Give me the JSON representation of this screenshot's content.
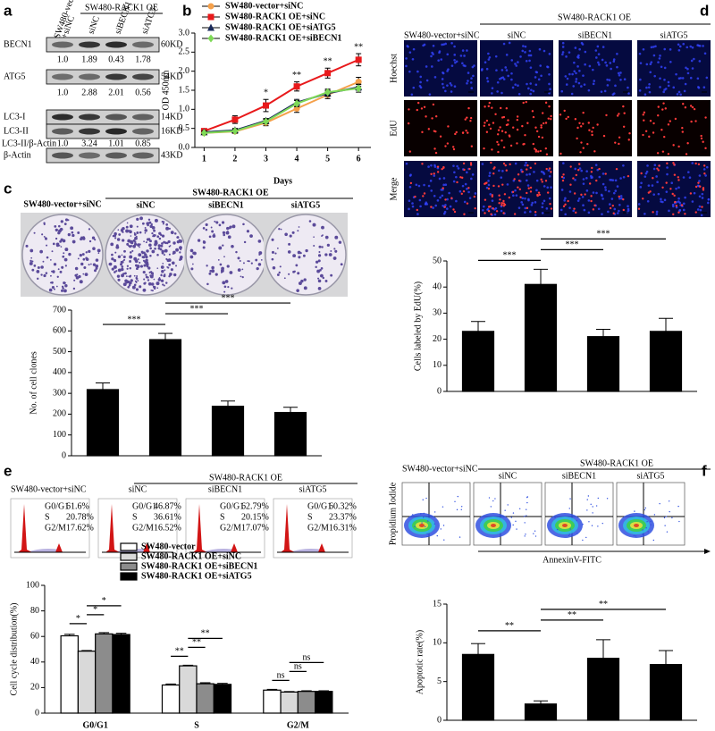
{
  "panel_labels": [
    "a",
    "b",
    "c",
    "d",
    "e",
    "f"
  ],
  "blot": {
    "group": "SW480-RACK1 OE",
    "control": [
      "SW480-vector",
      "+siNC"
    ],
    "columns": [
      "siNC",
      "siBECN1",
      "siATG5"
    ],
    "rows": [
      {
        "label": "BECN1",
        "size": "60KD"
      },
      {
        "label": "ATG5",
        "size": "54KD"
      },
      {
        "label": "LC3-I",
        "size": "14KD"
      },
      {
        "label": "LC3-II",
        "size": "16KD"
      },
      {
        "label": "β-Actin",
        "size": "43KD"
      }
    ],
    "ratios": [
      {
        "values": [
          "1.0",
          "1.89",
          "0.43",
          "1.78"
        ]
      },
      {
        "values": [
          "1.0",
          "2.88",
          "2.01",
          "0.56"
        ]
      },
      {
        "label": "LC3-II/β-Actin",
        "values": [
          "1.0",
          "3.24",
          "1.01",
          "0.85"
        ]
      }
    ]
  },
  "colony": {
    "control": "SW480-vector+siNC",
    "group": "SW480-RACK1 OE",
    "columns": [
      "siNC",
      "siBECN1",
      "siATG5"
    ]
  },
  "edu": {
    "control": "SW480-vector+siNC",
    "group": "SW480-RACK1 OE",
    "columns": [
      "siNC",
      "siBECN1",
      "siATG5"
    ],
    "rows": [
      "Hoechst",
      "EdU",
      "Merge"
    ]
  },
  "cell_cycle": {
    "control": "SW480-vector+siNC",
    "group": "SW480-RACK1 OE",
    "columns": [
      "siNC",
      "siBECN1",
      "siATG5"
    ],
    "panels": [
      [
        [
          "G0/G1",
          "61.6%"
        ],
        [
          "S",
          "20.78%"
        ],
        [
          "G2/M",
          "17.62%"
        ]
      ],
      [
        [
          "G0/G1",
          "46.87%"
        ],
        [
          "S",
          "36.61%"
        ],
        [
          "G2/M",
          "16.52%"
        ]
      ],
      [
        [
          "G0/G1",
          "62.79%"
        ],
        [
          "S",
          "20.15%"
        ],
        [
          "G2/M",
          "17.07%"
        ]
      ],
      [
        [
          "G0/G1",
          "60.32%"
        ],
        [
          "S",
          "23.37%"
        ],
        [
          "G2/M",
          "16.31%"
        ]
      ]
    ]
  },
  "apoptosis": {
    "control": "SW480-vector+siNC",
    "group": "SW480-RACK1 OE",
    "columns": [
      "siNC",
      "siBECN1",
      "siATG5"
    ],
    "y_label": "Propidium Iodide",
    "x_label": "AnnexinV-FITC"
  },
  "chart_data": [
    {
      "type": "line",
      "x_label": "Days",
      "y_label": "OD 450nm",
      "x": [
        1,
        2,
        3,
        4,
        5,
        6
      ],
      "xlim": [
        0.7,
        6.4
      ],
      "xticks": [
        1,
        2,
        3,
        4,
        5,
        6
      ],
      "ylim": [
        0,
        3
      ],
      "yticks": [
        {
          "value": 0,
          "label": "0.0"
        },
        0.5,
        {
          "value": 1,
          "label": "1.0"
        },
        1.5,
        {
          "value": 2,
          "label": "2.0"
        },
        2.5,
        {
          "value": 3,
          "label": "3.0"
        }
      ],
      "legend": "upper left",
      "series": [
        {
          "name": "SW480-vector+siNC",
          "color": "#f5a04a",
          "marker": "circle",
          "values": [
            0.38,
            0.42,
            0.65,
            1.02,
            1.38,
            1.72
          ],
          "errors": [
            0.04,
            0.05,
            0.08,
            0.1,
            0.1,
            0.12
          ]
        },
        {
          "name": "SW480-RACK1 OE+siNC",
          "color": "#e8191b",
          "marker": "square",
          "values": [
            0.43,
            0.73,
            1.1,
            1.6,
            1.95,
            2.3
          ],
          "errors": [
            0.04,
            0.1,
            0.16,
            0.12,
            0.13,
            0.16
          ]
        },
        {
          "name": "SW480-RACK1 OE+siATG5",
          "color": "#1a2a5a",
          "marker": "triangle",
          "values": [
            0.4,
            0.45,
            0.7,
            1.18,
            1.42,
            1.58
          ],
          "errors": [
            0.04,
            0.05,
            0.06,
            0.08,
            0.08,
            0.08
          ]
        },
        {
          "name": "SW480-RACK1 OE+siBECN1",
          "color": "#7ed957",
          "marker": "diamond",
          "values": [
            0.38,
            0.43,
            0.68,
            1.15,
            1.45,
            1.55
          ],
          "errors": [
            0.04,
            0.05,
            0.06,
            0.08,
            0.08,
            0.1
          ]
        }
      ],
      "significance": [
        null,
        null,
        "*",
        "**",
        "**",
        "**"
      ]
    },
    {
      "type": "bar",
      "y_label": "No. of cell clones",
      "categories": [
        null,
        null,
        null,
        null
      ],
      "values": [
        318,
        558,
        238,
        208
      ],
      "errors": [
        32,
        30,
        25,
        25
      ],
      "color": "#000000",
      "ylim": [
        0,
        700
      ],
      "yticks": [
        0,
        100,
        200,
        300,
        400,
        500,
        600,
        700
      ],
      "comparisons": [
        {
          "pair": [
            0,
            1
          ],
          "label": "***"
        },
        {
          "pair": [
            1,
            2
          ],
          "label": "***"
        },
        {
          "pair": [
            1,
            3
          ],
          "label": "***"
        }
      ]
    },
    {
      "type": "bar",
      "y_label": "Cells labeled by EdU(%)",
      "categories": [
        null,
        null,
        null,
        null
      ],
      "values": [
        23,
        41,
        21,
        23
      ],
      "errors": [
        3.8,
        5.8,
        2.8,
        5
      ],
      "color": "#000000",
      "ylim": [
        0,
        50
      ],
      "yticks": [
        0,
        10,
        20,
        30,
        40,
        50
      ],
      "comparisons": [
        {
          "pair": [
            0,
            1
          ],
          "label": "***"
        },
        {
          "pair": [
            1,
            2
          ],
          "label": "***"
        },
        {
          "pair": [
            1,
            3
          ],
          "label": "***"
        }
      ]
    },
    {
      "type": "bar",
      "y_label": "Cell cycle distribution(%)",
      "categories": [
        "G0/G1",
        "S",
        "G2/M"
      ],
      "legend": "upper left",
      "series": [
        {
          "name": "SW480-vector",
          "color": "#ffffff",
          "values": [
            60.5,
            22,
            18
          ],
          "errors": [
            1.2,
            0.8,
            0.6
          ]
        },
        {
          "name": "SW480-RACK1 OE+siNC",
          "color": "#d9d9d9",
          "values": [
            48.5,
            37,
            16.5
          ],
          "errors": [
            0.5,
            0.5,
            0.4
          ]
        },
        {
          "name": "SW480-RACK1 OE+siBECN1",
          "color": "#8c8c8c",
          "values": [
            62,
            23,
            17
          ],
          "errors": [
            1,
            0.8,
            0.5
          ]
        },
        {
          "name": "SW480-RACK1 OE+siATG5",
          "color": "#000000",
          "values": [
            61.5,
            22.5,
            17
          ],
          "errors": [
            1,
            0.8,
            0.5
          ]
        }
      ],
      "ylim": [
        0,
        100
      ],
      "yticks": [
        0,
        20,
        40,
        60,
        80,
        100
      ],
      "comparisons": [
        {
          "category": 0,
          "pair": [
            0,
            1
          ],
          "label": "*"
        },
        {
          "category": 0,
          "pair": [
            1,
            2
          ],
          "label": "*"
        },
        {
          "category": 0,
          "pair": [
            1,
            3
          ],
          "label": "*"
        },
        {
          "category": 1,
          "pair": [
            0,
            1
          ],
          "label": "**"
        },
        {
          "category": 1,
          "pair": [
            1,
            2
          ],
          "label": "**"
        },
        {
          "category": 1,
          "pair": [
            1,
            3
          ],
          "label": "**"
        },
        {
          "category": 2,
          "pair": [
            0,
            1
          ],
          "label": "ns"
        },
        {
          "category": 2,
          "pair": [
            1,
            2
          ],
          "label": "ns"
        },
        {
          "category": 2,
          "pair": [
            1,
            3
          ],
          "label": "ns"
        }
      ]
    },
    {
      "type": "bar",
      "y_label": "Apoptotic rate(%)",
      "categories": [
        null,
        null,
        null,
        null
      ],
      "values": [
        8.5,
        2.1,
        8.0,
        7.2
      ],
      "errors": [
        1.4,
        0.4,
        2.4,
        1.8
      ],
      "color": "#000000",
      "ylim": [
        0,
        15
      ],
      "yticks": [
        0,
        5,
        10,
        15
      ],
      "comparisons": [
        {
          "pair": [
            0,
            1
          ],
          "label": "**"
        },
        {
          "pair": [
            1,
            2
          ],
          "label": "**"
        },
        {
          "pair": [
            1,
            3
          ],
          "label": "**"
        }
      ]
    }
  ]
}
